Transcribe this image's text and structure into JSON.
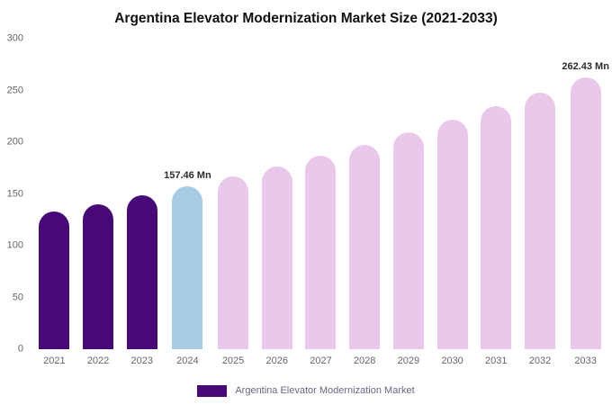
{
  "title": "Argentina Elevator Modernization Market Size (2021-2033)",
  "legend": {
    "label": "Argentina Elevator Modernization Market",
    "color": "#470978"
  },
  "chart_data": {
    "type": "bar",
    "title": "Argentina Elevator Modernization Market Size (2021-2033)",
    "categories": [
      "2021",
      "2022",
      "2023",
      "2024",
      "2025",
      "2026",
      "2027",
      "2028",
      "2029",
      "2030",
      "2031",
      "2032",
      "2033"
    ],
    "values": [
      132.7,
      140.4,
      148.7,
      157.46,
      166.7,
      176.4,
      186.8,
      197.7,
      209.3,
      221.5,
      234.5,
      248.2,
      262.43
    ],
    "unit": "Mn",
    "bar_colors": [
      "#470978",
      "#470978",
      "#470978",
      "#a6cbe3",
      "#eac8ec",
      "#eac8ec",
      "#eac8ec",
      "#eac8ec",
      "#eac8ec",
      "#eac8ec",
      "#eac8ec",
      "#eac8ec",
      "#eac8ec"
    ],
    "annotations": {
      "2024": "157.46 Mn",
      "2033": "262.43 Mn"
    },
    "xlabel": "",
    "ylabel": "",
    "ylim": [
      0,
      300
    ],
    "yticks": [
      0,
      50,
      100,
      150,
      200,
      250,
      300
    ],
    "grid": false,
    "legend_position": "bottom"
  }
}
